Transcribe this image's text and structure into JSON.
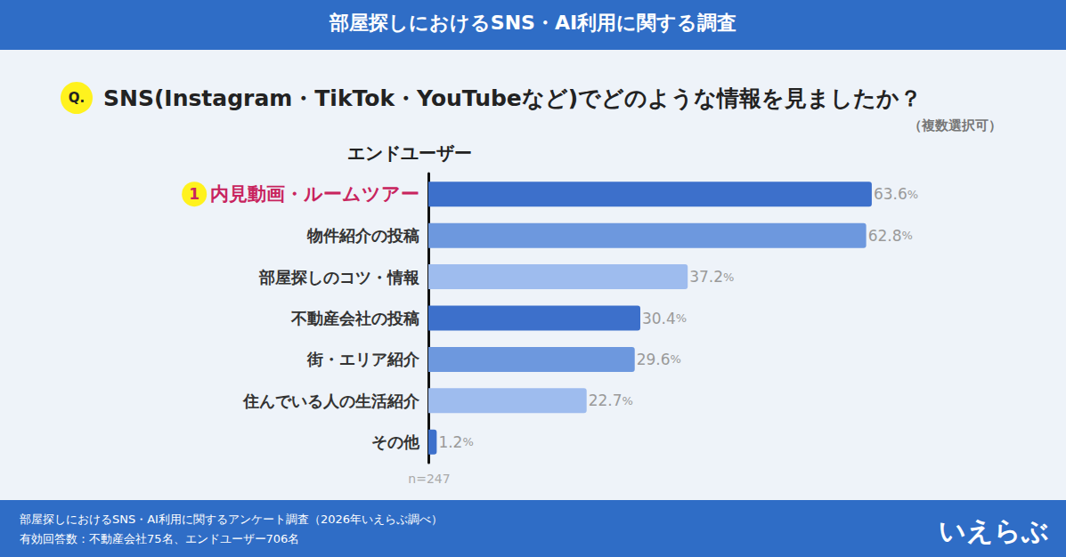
{
  "header": "部屋探しにおけるSNS・AI利用に関する調査",
  "question_badge": "Q.",
  "footer": {
    "lines": [
      "部屋探しにおけるSNS・AI利用に関するアンケート調査（2026年いえらぶ調べ）",
      "有効回答数：不動産会社75名、エンドユーザー706名"
    ],
    "logo": "いえらぶ"
  },
  "chart_data": {
    "type": "bar",
    "orientation": "horizontal",
    "title": "SNS(Instagram・TikTok・YouTubeなど)でどのような情報を見ましたか？",
    "subtitle": "（複数選択可）",
    "ylabel": "エンドユーザー",
    "note": "n=247",
    "categories": [
      "内見動画・ルームツアー",
      "物件紹介の投稿",
      "部屋探しのコツ・情報",
      "不動産会社の投稿",
      "街・エリア紹介",
      "住んでいる人の生活紹介",
      "その他"
    ],
    "values": [
      63.6,
      62.8,
      37.2,
      30.4,
      29.6,
      22.7,
      1.2
    ],
    "value_labels": [
      "63.6%",
      "62.8%",
      "37.2%",
      "30.4%",
      "29.6%",
      "22.7%",
      "1.2%"
    ],
    "colors": [
      "#3d70cb",
      "#6d98de",
      "#9ebcee",
      "#3d70cb",
      "#6d98de",
      "#9ebcee",
      "#3d70cb"
    ],
    "annotations": [
      {
        "text": "1",
        "category": "内見動画・ルームツアー"
      }
    ],
    "xlim": [
      0,
      70
    ],
    "grid": false,
    "data_labels": true,
    "tick_labels": "y"
  }
}
